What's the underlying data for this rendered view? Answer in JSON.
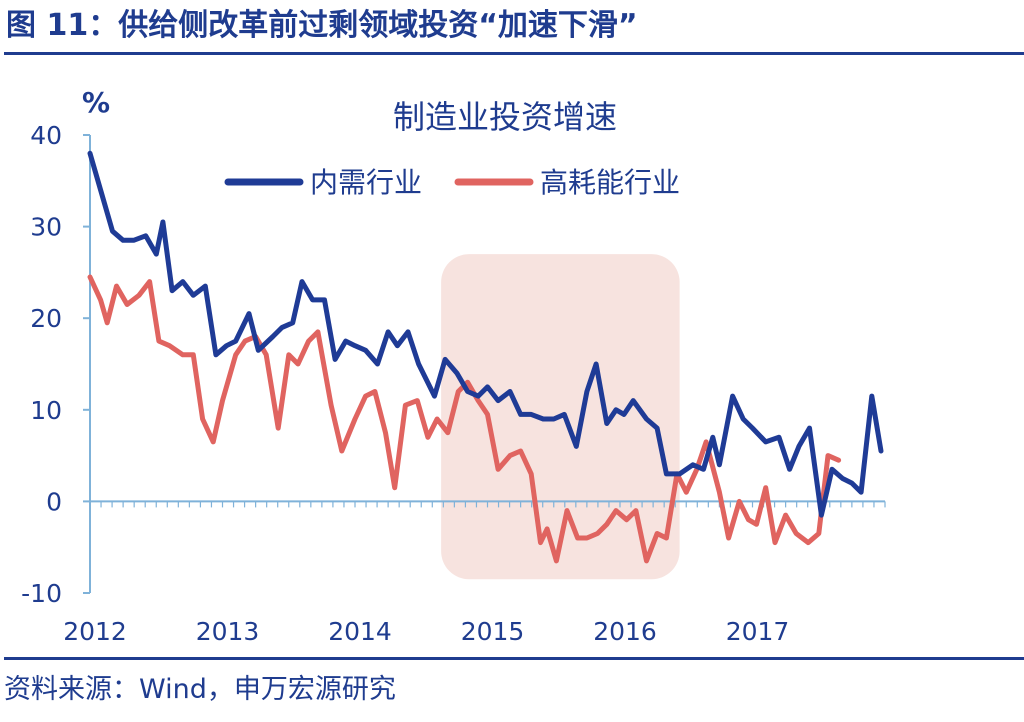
{
  "page": {
    "title": "图 11：供给侧改革前过剩领域投资“加速下滑”",
    "source": "资料来源：Wind，申万宏源研究"
  },
  "colors": {
    "brand": "#1f3c8f",
    "axis": "#7fb2d9",
    "series_domestic": "#1f3b96",
    "series_energy": "#e06460",
    "highlight": "#f7e3df"
  },
  "chart_data": {
    "type": "line",
    "title": "制造业投资增速",
    "unit_label": "%",
    "ylim": [
      -10,
      40
    ],
    "yticks": [
      -10,
      0,
      10,
      20,
      30,
      40
    ],
    "xlim": [
      2012.0,
      2018.0
    ],
    "xticks": [
      2012,
      2013,
      2014,
      2015,
      2016,
      2017
    ],
    "x_tick_labels": [
      "2012",
      "2013",
      "2014",
      "2015",
      "2016",
      "2017"
    ],
    "legend_position": "top-center",
    "grid": false,
    "highlight_band": {
      "x_start": 2014.65,
      "x_end": 2016.45,
      "y_min": -8.5,
      "y_max": 27
    },
    "series": [
      {
        "name": "内需行业",
        "color": "#1f3b96",
        "points": [
          [
            2012.0,
            38
          ],
          [
            2012.08,
            34
          ],
          [
            2012.17,
            29.5
          ],
          [
            2012.25,
            28.5
          ],
          [
            2012.33,
            28.5
          ],
          [
            2012.42,
            29
          ],
          [
            2012.5,
            27
          ],
          [
            2012.55,
            30.5
          ],
          [
            2012.62,
            23
          ],
          [
            2012.7,
            24
          ],
          [
            2012.78,
            22.5
          ],
          [
            2012.87,
            23.5
          ],
          [
            2012.95,
            16
          ],
          [
            2013.03,
            17
          ],
          [
            2013.1,
            17.5
          ],
          [
            2013.2,
            20.5
          ],
          [
            2013.27,
            16.5
          ],
          [
            2013.38,
            18
          ],
          [
            2013.45,
            19
          ],
          [
            2013.53,
            19.5
          ],
          [
            2013.6,
            24
          ],
          [
            2013.68,
            22
          ],
          [
            2013.77,
            22
          ],
          [
            2013.85,
            15.5
          ],
          [
            2013.93,
            17.5
          ],
          [
            2014.0,
            17
          ],
          [
            2014.08,
            16.5
          ],
          [
            2014.17,
            15
          ],
          [
            2014.25,
            18.5
          ],
          [
            2014.32,
            17
          ],
          [
            2014.4,
            18.5
          ],
          [
            2014.48,
            15
          ],
          [
            2014.6,
            11.5
          ],
          [
            2014.68,
            15.5
          ],
          [
            2014.77,
            14
          ],
          [
            2014.85,
            12
          ],
          [
            2014.93,
            11.5
          ],
          [
            2015.0,
            12.5
          ],
          [
            2015.08,
            11
          ],
          [
            2015.17,
            12
          ],
          [
            2015.25,
            9.5
          ],
          [
            2015.33,
            9.5
          ],
          [
            2015.42,
            9
          ],
          [
            2015.5,
            9
          ],
          [
            2015.58,
            9.5
          ],
          [
            2015.67,
            6
          ],
          [
            2015.75,
            12
          ],
          [
            2015.82,
            15
          ],
          [
            2015.9,
            8.5
          ],
          [
            2015.97,
            10
          ],
          [
            2016.03,
            9.5
          ],
          [
            2016.1,
            11
          ],
          [
            2016.2,
            9
          ],
          [
            2016.28,
            8
          ],
          [
            2016.35,
            3
          ],
          [
            2016.45,
            3
          ],
          [
            2016.55,
            4
          ],
          [
            2016.63,
            3.5
          ],
          [
            2016.7,
            7
          ],
          [
            2016.75,
            4
          ],
          [
            2016.85,
            11.5
          ],
          [
            2016.93,
            9
          ],
          [
            2017.0,
            8
          ],
          [
            2017.1,
            6.5
          ],
          [
            2017.2,
            7
          ],
          [
            2017.28,
            3.5
          ],
          [
            2017.35,
            6
          ],
          [
            2017.43,
            8
          ],
          [
            2017.52,
            -1.5
          ],
          [
            2017.6,
            3.5
          ],
          [
            2017.68,
            2.5
          ],
          [
            2017.75,
            2
          ],
          [
            2017.82,
            1
          ],
          [
            2017.9,
            11.5
          ],
          [
            2017.97,
            5.5
          ]
        ]
      },
      {
        "name": "高耗能行业",
        "color": "#e06460",
        "points": [
          [
            2012.0,
            24.5
          ],
          [
            2012.08,
            22
          ],
          [
            2012.13,
            19.5
          ],
          [
            2012.2,
            23.5
          ],
          [
            2012.28,
            21.5
          ],
          [
            2012.37,
            22.5
          ],
          [
            2012.45,
            24
          ],
          [
            2012.52,
            17.5
          ],
          [
            2012.6,
            17
          ],
          [
            2012.7,
            16
          ],
          [
            2012.78,
            16
          ],
          [
            2012.85,
            9
          ],
          [
            2012.93,
            6.5
          ],
          [
            2013.0,
            11
          ],
          [
            2013.1,
            16
          ],
          [
            2013.17,
            17.5
          ],
          [
            2013.25,
            18
          ],
          [
            2013.33,
            16
          ],
          [
            2013.42,
            8
          ],
          [
            2013.5,
            16
          ],
          [
            2013.57,
            15
          ],
          [
            2013.65,
            17.5
          ],
          [
            2013.72,
            18.5
          ],
          [
            2013.82,
            10.5
          ],
          [
            2013.9,
            5.5
          ],
          [
            2014.0,
            9
          ],
          [
            2014.08,
            11.5
          ],
          [
            2014.15,
            12
          ],
          [
            2014.23,
            7.5
          ],
          [
            2014.3,
            1.5
          ],
          [
            2014.38,
            10.5
          ],
          [
            2014.47,
            11
          ],
          [
            2014.55,
            7
          ],
          [
            2014.62,
            9
          ],
          [
            2014.7,
            7.5
          ],
          [
            2014.78,
            12
          ],
          [
            2014.85,
            13
          ],
          [
            2014.93,
            11
          ],
          [
            2015.0,
            9.5
          ],
          [
            2015.08,
            3.5
          ],
          [
            2015.17,
            5
          ],
          [
            2015.25,
            5.5
          ],
          [
            2015.33,
            3
          ],
          [
            2015.4,
            -4.5
          ],
          [
            2015.45,
            -3
          ],
          [
            2015.52,
            -6.5
          ],
          [
            2015.6,
            -1
          ],
          [
            2015.68,
            -4
          ],
          [
            2015.75,
            -4
          ],
          [
            2015.83,
            -3.5
          ],
          [
            2015.9,
            -2.5
          ],
          [
            2015.97,
            -1
          ],
          [
            2016.05,
            -2
          ],
          [
            2016.12,
            -1
          ],
          [
            2016.2,
            -6.5
          ],
          [
            2016.28,
            -3.5
          ],
          [
            2016.35,
            -4
          ],
          [
            2016.43,
            3
          ],
          [
            2016.5,
            1
          ],
          [
            2016.58,
            3.5
          ],
          [
            2016.65,
            6.5
          ],
          [
            2016.75,
            1
          ],
          [
            2016.82,
            -4
          ],
          [
            2016.9,
            0
          ],
          [
            2016.97,
            -2
          ],
          [
            2017.03,
            -2.5
          ],
          [
            2017.1,
            1.5
          ],
          [
            2017.17,
            -4.5
          ],
          [
            2017.25,
            -1.5
          ],
          [
            2017.33,
            -3.5
          ],
          [
            2017.42,
            -4.5
          ],
          [
            2017.5,
            -3.5
          ],
          [
            2017.57,
            5
          ],
          [
            2017.65,
            4.5
          ]
        ]
      }
    ]
  }
}
